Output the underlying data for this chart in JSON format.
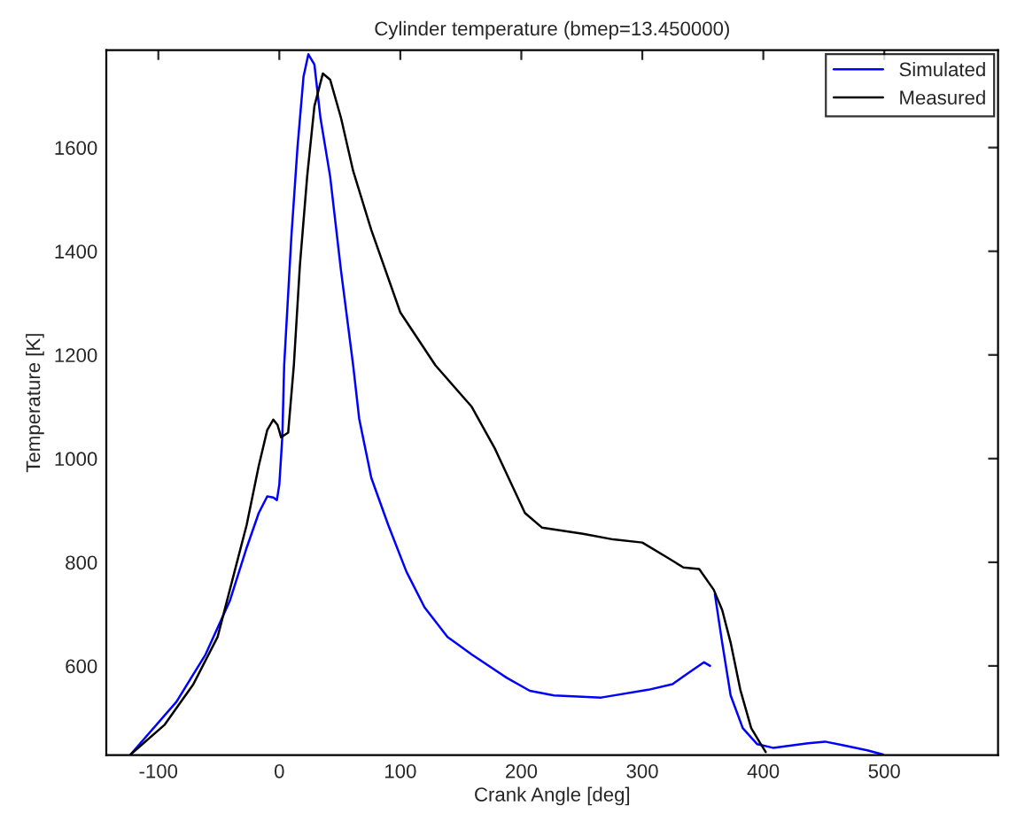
{
  "chart_data": {
    "type": "line",
    "title": "Cylinder temperature (bmep=13.450000)",
    "xlabel": "Crank Angle [deg]",
    "ylabel": "Temperature [K]",
    "xlim": [
      -143,
      594
    ],
    "xticks": [
      -100,
      0,
      100,
      200,
      300,
      400,
      500
    ],
    "ylim": [
      428,
      1788
    ],
    "yticks": [
      600,
      800,
      1000,
      1200,
      1400,
      1600
    ],
    "grid": false,
    "legend": "top right",
    "line_style": "solid",
    "marker": "none",
    "series": [
      {
        "name": "Simulated",
        "color": "#0000ff",
        "x": [
          -123,
          -85,
          -61,
          -41,
          -27,
          -17,
          -10,
          -5,
          -2,
          0,
          2.5,
          4,
          10,
          15,
          20,
          24,
          29,
          34,
          42,
          51,
          61,
          66,
          76,
          90,
          105,
          120,
          139,
          159,
          188,
          207,
          227,
          266,
          305,
          325,
          339,
          351,
          356,
          358,
          360,
          366,
          373,
          383,
          395,
          408,
          437,
          451,
          466,
          486,
          499
        ],
        "values": [
          429,
          531,
          622,
          725,
          828,
          895,
          927,
          925,
          920,
          950,
          1043,
          1180,
          1430,
          1600,
          1737,
          1780,
          1760,
          1657,
          1544,
          1362,
          1180,
          1077,
          963,
          872,
          782,
          713,
          656,
          622,
          577,
          552,
          543,
          539,
          554,
          565,
          588,
          607,
          600,
          null,
          738,
          645,
          543,
          480,
          449,
          442,
          451,
          454,
          447,
          437,
          429
        ]
      },
      {
        "name": "Measured",
        "color": "#000000",
        "x": [
          -123,
          -95,
          -71,
          -51,
          -37,
          -27,
          -17,
          -10,
          -5,
          -1.5,
          1.5,
          4,
          7.3,
          12,
          17,
          23,
          29,
          36,
          42,
          51,
          61,
          76,
          100,
          129,
          159,
          178,
          203,
          217,
          251,
          276,
          300,
          320,
          334,
          347,
          359,
          366,
          373,
          381,
          390,
          398,
          402
        ],
        "values": [
          429,
          486,
          565,
          656,
          782,
          872,
          986,
          1055,
          1075,
          1065,
          1041,
          1045,
          1050,
          1180,
          1373,
          1544,
          1680,
          1743,
          1731,
          1657,
          1555,
          1441,
          1282,
          1180,
          1100,
          1020,
          895,
          867,
          855,
          844,
          838,
          810,
          790,
          787,
          747,
          708,
          645,
          554,
          480,
          449,
          434
        ]
      }
    ]
  }
}
